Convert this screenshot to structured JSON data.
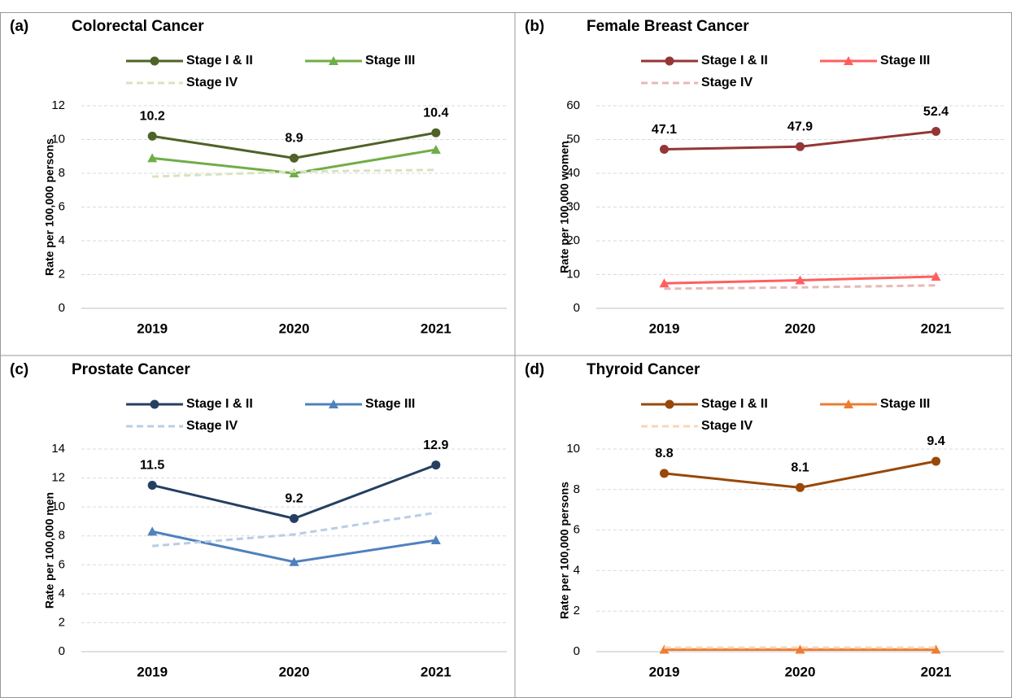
{
  "chart_data": [
    {
      "type": "line",
      "panel": "(a)",
      "title": "Colorectal Cancer",
      "y_label": "Rate per 100,000 persons",
      "categories": [
        "2019",
        "2020",
        "2021"
      ],
      "ylim": [
        0,
        12
      ],
      "yticks": [
        0,
        2,
        4,
        6,
        8,
        10,
        12
      ],
      "grid": true,
      "series": [
        {
          "name": "Stage I & II",
          "color": "#4f6228",
          "marker": "circle",
          "dash": false,
          "data_labels": true,
          "values": [
            10.2,
            8.9,
            10.4
          ]
        },
        {
          "name": "Stage III",
          "color": "#70ad47",
          "marker": "triangle",
          "dash": false,
          "data_labels": false,
          "values": [
            8.9,
            8.0,
            9.4
          ]
        },
        {
          "name": "Stage IV",
          "color": "#d7e4bd",
          "marker": "none",
          "dash": true,
          "data_labels": false,
          "values": [
            7.8,
            8.1,
            8.2
          ]
        }
      ]
    },
    {
      "type": "line",
      "panel": "(b)",
      "title": "Female Breast Cancer",
      "y_label": "Rate per 100,000 women",
      "categories": [
        "2019",
        "2020",
        "2021"
      ],
      "ylim": [
        0,
        60
      ],
      "yticks": [
        0,
        10,
        20,
        30,
        40,
        50,
        60
      ],
      "grid": true,
      "series": [
        {
          "name": "Stage I & II",
          "color": "#943634",
          "marker": "circle",
          "dash": false,
          "data_labels": true,
          "values": [
            47.1,
            47.9,
            52.4
          ]
        },
        {
          "name": "Stage III",
          "color": "#ff5f5f",
          "marker": "triangle",
          "dash": false,
          "data_labels": false,
          "values": [
            7.4,
            8.3,
            9.4
          ]
        },
        {
          "name": "Stage IV",
          "color": "#e6b8b7",
          "marker": "none",
          "dash": true,
          "data_labels": false,
          "values": [
            5.8,
            6.2,
            6.8
          ]
        }
      ]
    },
    {
      "type": "line",
      "panel": "(c)",
      "title": "Prostate Cancer",
      "y_label": "Rate per 100,000 men",
      "categories": [
        "2019",
        "2020",
        "2021"
      ],
      "ylim": [
        0,
        14
      ],
      "yticks": [
        0,
        2,
        4,
        6,
        8,
        10,
        12,
        14
      ],
      "grid": true,
      "series": [
        {
          "name": "Stage I & II",
          "color": "#243f60",
          "marker": "circle",
          "dash": false,
          "data_labels": true,
          "values": [
            11.5,
            9.2,
            12.9
          ]
        },
        {
          "name": "Stage III",
          "color": "#4f81bd",
          "marker": "triangle",
          "dash": false,
          "data_labels": false,
          "values": [
            8.3,
            6.2,
            7.7
          ]
        },
        {
          "name": "Stage IV",
          "color": "#b9cde5",
          "marker": "none",
          "dash": true,
          "data_labels": false,
          "values": [
            7.3,
            8.1,
            9.6
          ]
        }
      ]
    },
    {
      "type": "line",
      "panel": "(d)",
      "title": "Thyroid Cancer",
      "y_label": "Rate per 100,000 persons",
      "categories": [
        "2019",
        "2020",
        "2021"
      ],
      "ylim": [
        0,
        10
      ],
      "yticks": [
        0,
        2,
        4,
        6,
        8,
        10
      ],
      "grid": true,
      "series": [
        {
          "name": "Stage I & II",
          "color": "#984807",
          "marker": "circle",
          "dash": false,
          "data_labels": true,
          "values": [
            8.8,
            8.1,
            9.4
          ]
        },
        {
          "name": "Stage III",
          "color": "#ed7d31",
          "marker": "triangle",
          "dash": false,
          "data_labels": false,
          "values": [
            0.1,
            0.1,
            0.1
          ]
        },
        {
          "name": "Stage IV",
          "color": "#fbd5b5",
          "marker": "none",
          "dash": true,
          "data_labels": false,
          "values": [
            0.2,
            0.2,
            0.2
          ]
        }
      ]
    }
  ]
}
